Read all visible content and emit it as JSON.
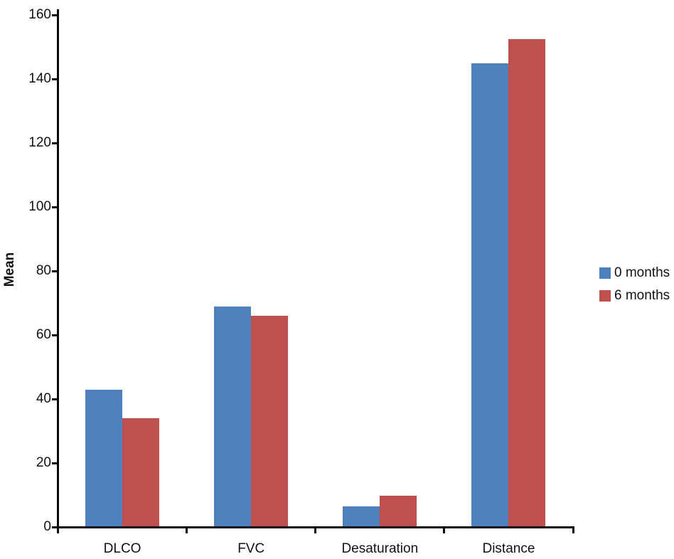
{
  "chart_data": {
    "type": "bar",
    "title": "",
    "xlabel": "",
    "ylabel": "Mean",
    "categories": [
      "DLCO",
      "FVC",
      "Desaturation",
      "Distance"
    ],
    "series": [
      {
        "name": "0 months",
        "color": "#4F81BD",
        "values": [
          43,
          69,
          6.5,
          145
        ]
      },
      {
        "name": "6 months",
        "color": "#C0504D",
        "values": [
          34,
          66,
          9.7,
          152.5
        ]
      }
    ],
    "ylim": [
      0,
      160
    ],
    "yticks": [
      0,
      20,
      40,
      60,
      80,
      100,
      120,
      140,
      160
    ],
    "grid": false,
    "legend_position": "right",
    "axis_color": "#0a0a0a",
    "background": "#ffffff"
  }
}
